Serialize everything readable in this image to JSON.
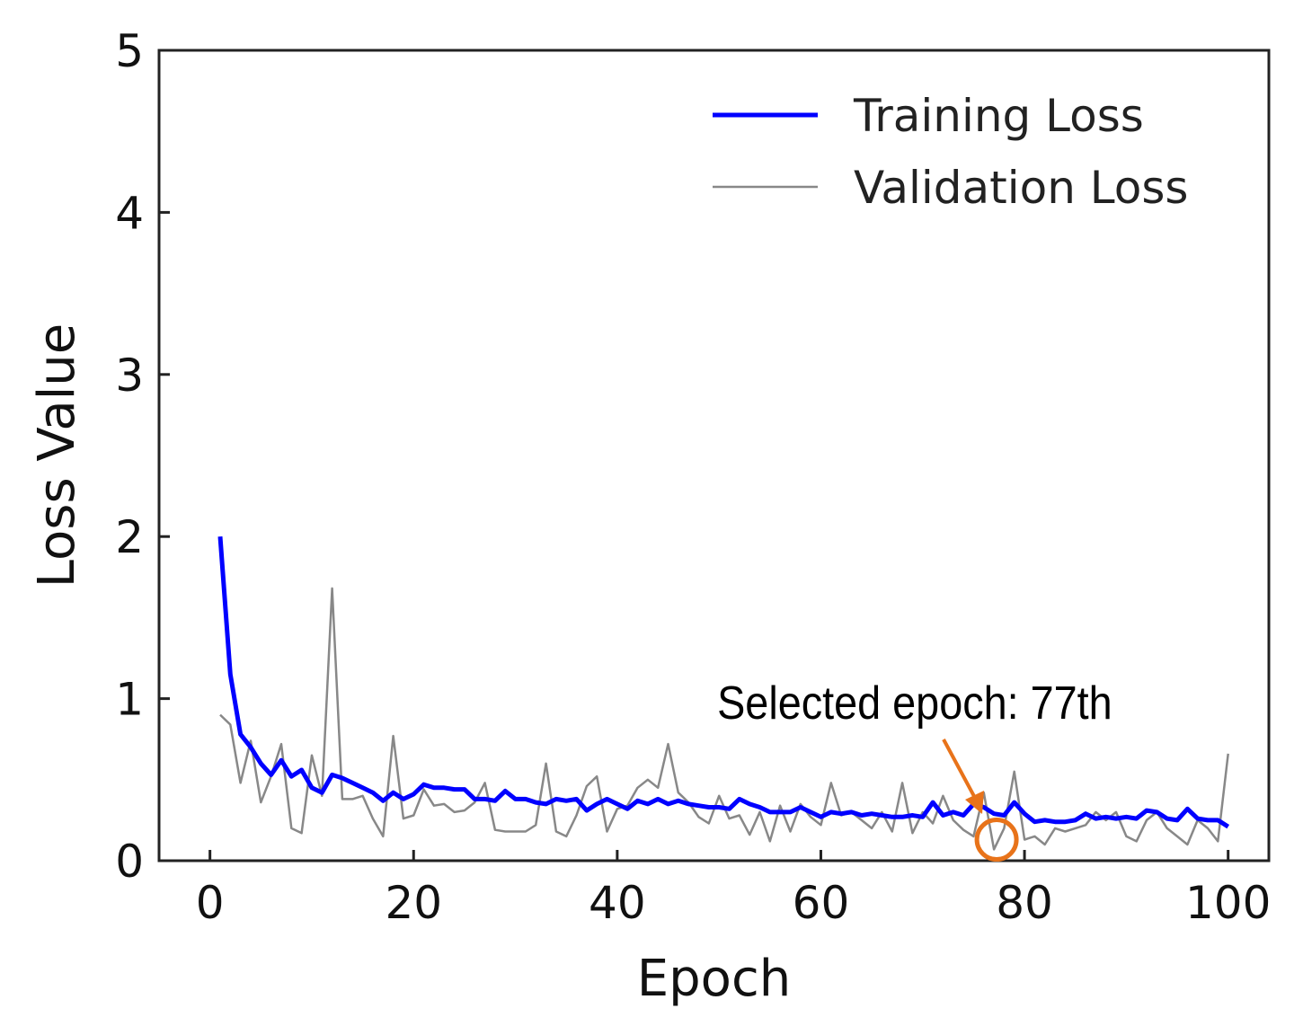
{
  "chart_data": {
    "type": "line",
    "title": "",
    "xlabel": "Epoch",
    "ylabel": "Loss Value",
    "xlim": [
      -5,
      104
    ],
    "ylim": [
      0,
      5
    ],
    "xticks": [
      0,
      20,
      40,
      60,
      80,
      100
    ],
    "yticks": [
      0,
      1,
      2,
      3,
      4,
      5
    ],
    "grid": false,
    "legend_position": "top-right",
    "colors": {
      "training": "#0000ff",
      "validation": "#888888",
      "annotation": "#e8731a"
    },
    "series": [
      {
        "name": "Training Loss",
        "x": [
          1,
          2,
          3,
          4,
          5,
          6,
          7,
          8,
          9,
          10,
          11,
          12,
          13,
          14,
          15,
          16,
          17,
          18,
          19,
          20,
          21,
          22,
          23,
          24,
          25,
          26,
          27,
          28,
          29,
          30,
          31,
          32,
          33,
          34,
          35,
          36,
          37,
          38,
          39,
          40,
          41,
          42,
          43,
          44,
          45,
          46,
          47,
          48,
          49,
          50,
          51,
          52,
          53,
          54,
          55,
          56,
          57,
          58,
          59,
          60,
          61,
          62,
          63,
          64,
          65,
          66,
          67,
          68,
          69,
          70,
          71,
          72,
          73,
          74,
          75,
          76,
          77,
          78,
          79,
          80,
          81,
          82,
          83,
          84,
          85,
          86,
          87,
          88,
          89,
          90,
          91,
          92,
          93,
          94,
          95,
          96,
          97,
          98,
          99,
          100
        ],
        "values": [
          2.0,
          1.15,
          0.78,
          0.7,
          0.6,
          0.53,
          0.62,
          0.52,
          0.56,
          0.45,
          0.42,
          0.53,
          0.51,
          0.48,
          0.45,
          0.42,
          0.37,
          0.42,
          0.38,
          0.41,
          0.47,
          0.45,
          0.45,
          0.44,
          0.44,
          0.38,
          0.38,
          0.37,
          0.43,
          0.38,
          0.38,
          0.36,
          0.35,
          0.38,
          0.37,
          0.38,
          0.31,
          0.35,
          0.38,
          0.35,
          0.32,
          0.37,
          0.35,
          0.38,
          0.35,
          0.37,
          0.35,
          0.34,
          0.33,
          0.33,
          0.32,
          0.38,
          0.35,
          0.33,
          0.3,
          0.3,
          0.3,
          0.33,
          0.3,
          0.27,
          0.3,
          0.29,
          0.3,
          0.28,
          0.29,
          0.28,
          0.27,
          0.27,
          0.28,
          0.27,
          0.36,
          0.28,
          0.3,
          0.28,
          0.35,
          0.33,
          0.29,
          0.28,
          0.36,
          0.29,
          0.24,
          0.25,
          0.24,
          0.24,
          0.25,
          0.29,
          0.26,
          0.27,
          0.26,
          0.27,
          0.26,
          0.31,
          0.3,
          0.26,
          0.25,
          0.32,
          0.26,
          0.25,
          0.25,
          0.21
        ]
      },
      {
        "name": "Validation Loss",
        "x": [
          1,
          2,
          3,
          4,
          5,
          6,
          7,
          8,
          9,
          10,
          11,
          12,
          13,
          14,
          15,
          16,
          17,
          18,
          19,
          20,
          21,
          22,
          23,
          24,
          25,
          26,
          27,
          28,
          29,
          30,
          31,
          32,
          33,
          34,
          35,
          36,
          37,
          38,
          39,
          40,
          41,
          42,
          43,
          44,
          45,
          46,
          47,
          48,
          49,
          50,
          51,
          52,
          53,
          54,
          55,
          56,
          57,
          58,
          59,
          60,
          61,
          62,
          63,
          64,
          65,
          66,
          67,
          68,
          69,
          70,
          71,
          72,
          73,
          74,
          75,
          76,
          77,
          78,
          79,
          80,
          81,
          82,
          83,
          84,
          85,
          86,
          87,
          88,
          89,
          90,
          91,
          92,
          93,
          94,
          95,
          96,
          97,
          98,
          99,
          100
        ],
        "values": [
          0.9,
          0.84,
          0.48,
          0.74,
          0.36,
          0.52,
          0.72,
          0.2,
          0.17,
          0.65,
          0.4,
          1.68,
          0.38,
          0.38,
          0.4,
          0.26,
          0.15,
          0.77,
          0.26,
          0.28,
          0.44,
          0.34,
          0.35,
          0.3,
          0.31,
          0.36,
          0.48,
          0.19,
          0.18,
          0.18,
          0.18,
          0.22,
          0.6,
          0.18,
          0.15,
          0.28,
          0.46,
          0.52,
          0.18,
          0.32,
          0.34,
          0.45,
          0.5,
          0.45,
          0.72,
          0.42,
          0.36,
          0.27,
          0.23,
          0.4,
          0.26,
          0.28,
          0.16,
          0.3,
          0.12,
          0.34,
          0.18,
          0.35,
          0.27,
          0.22,
          0.48,
          0.28,
          0.3,
          0.25,
          0.2,
          0.3,
          0.18,
          0.48,
          0.17,
          0.3,
          0.23,
          0.4,
          0.25,
          0.19,
          0.15,
          0.42,
          0.07,
          0.2,
          0.55,
          0.13,
          0.15,
          0.1,
          0.2,
          0.18,
          0.2,
          0.22,
          0.3,
          0.25,
          0.3,
          0.15,
          0.12,
          0.25,
          0.3,
          0.2,
          0.15,
          0.1,
          0.25,
          0.2,
          0.12,
          0.66
        ]
      }
    ],
    "annotation": {
      "text": "Selected epoch: 77th",
      "epoch": 77
    }
  }
}
